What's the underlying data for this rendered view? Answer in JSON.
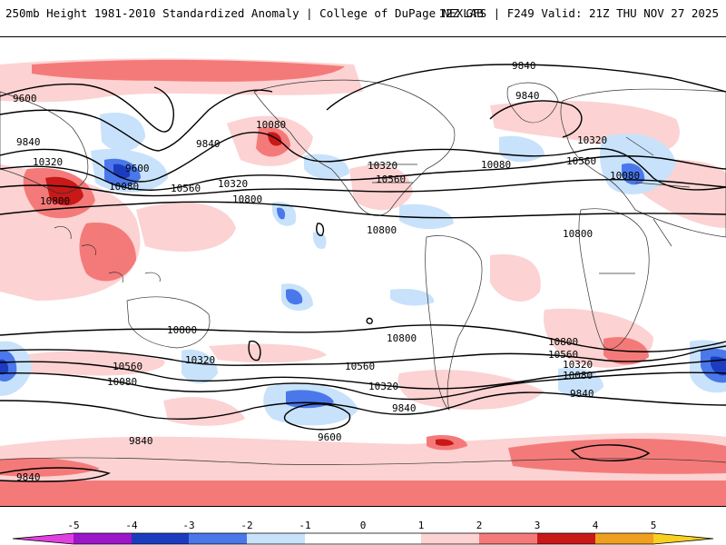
{
  "header": {
    "title": "250mb Height 1981-2010 Standardized Anomaly | College of DuPage NEXLAB",
    "run_info": "12Z GFS | F249 Valid: 21Z THU NOV 27 2025"
  },
  "contour_labels": [
    "9840",
    "9600",
    "9840",
    "9840",
    "9840",
    "10320",
    "10080",
    "9600",
    "10800",
    "10560",
    "10320",
    "10080",
    "10800",
    "10320",
    "10560",
    "10800",
    "10560",
    "10080",
    "10080",
    "10320",
    "10800",
    "10800",
    "10800",
    "10560",
    "10320",
    "10560",
    "10080",
    "10320",
    "9840",
    "10800",
    "10560",
    "10320",
    "10080",
    "9840",
    "9840",
    "9600",
    "9840"
  ],
  "legend": {
    "ticks": [
      "-5",
      "-4",
      "-3",
      "-2",
      "-1",
      "0",
      "1",
      "2",
      "3",
      "4",
      "5"
    ],
    "colors": {
      "anom_neg5": "#e040e0",
      "anom_neg4": "#9a16c8",
      "anom_neg3": "#1c3cc0",
      "anom_neg2": "#4a78ea",
      "anom_neg1": "#c8e2fb",
      "anom_zero": "#ffffff",
      "anom_pos1": "#fcd2d2",
      "anom_pos2": "#f47a7a",
      "anom_pos3": "#c81818",
      "anom_pos4": "#f0a020",
      "anom_pos5": "#f8d020"
    }
  }
}
